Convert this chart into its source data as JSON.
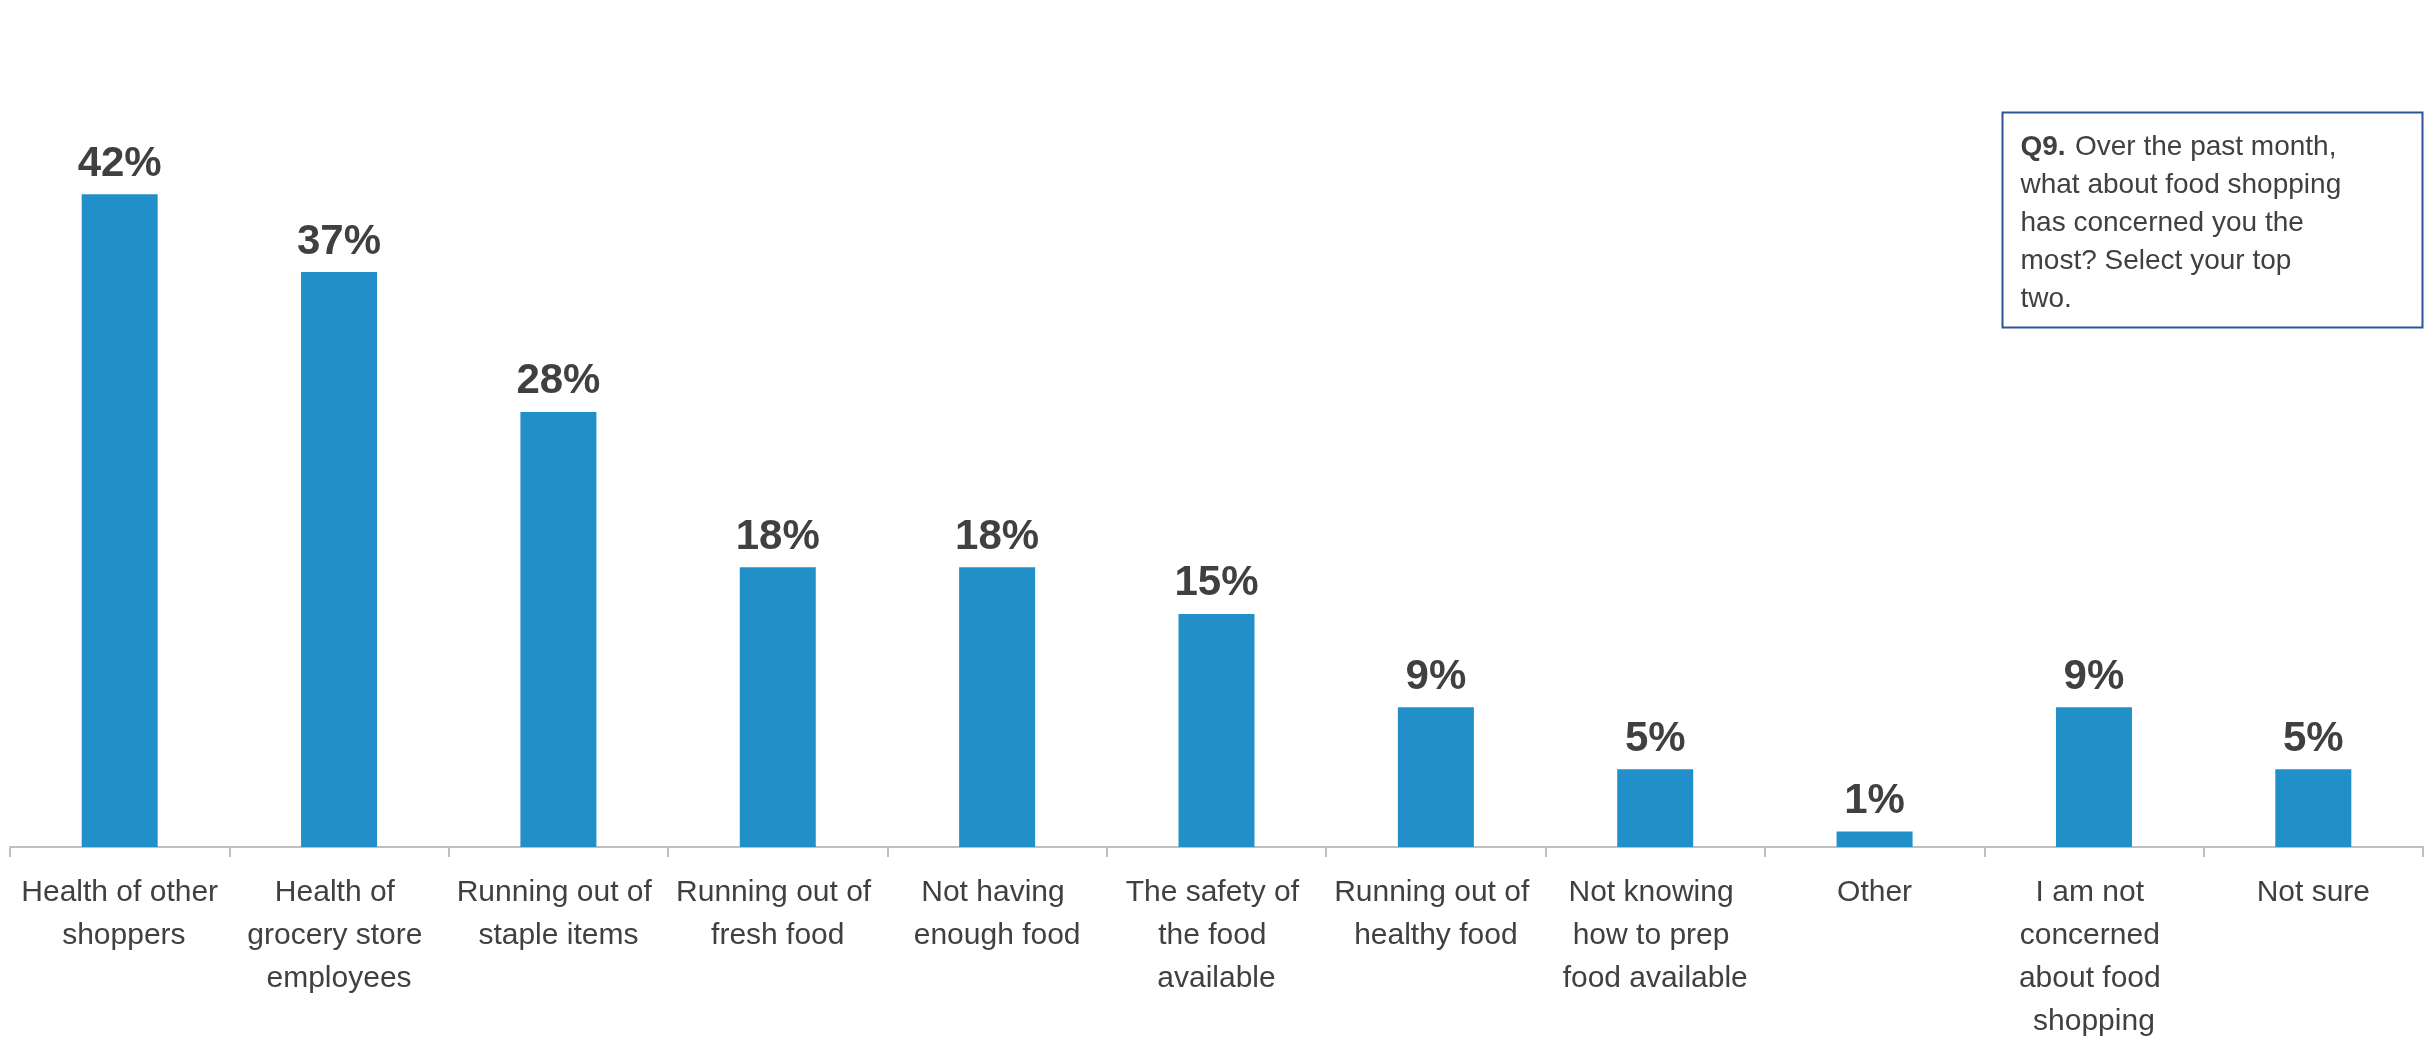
{
  "chart_data": {
    "type": "bar",
    "categories": [
      "Health of other shoppers",
      "Health of grocery store employees",
      "Running out of staple items",
      "Running out of fresh food",
      "Not having enough food",
      "The safety of the food available",
      "Running out of healthy food",
      "Not knowing how to prep food available",
      "Other",
      "I am not concerned about food shopping",
      "Not sure"
    ],
    "values": [
      42,
      37,
      28,
      18,
      18,
      15,
      9,
      5,
      1,
      9,
      5
    ],
    "value_labels": [
      "42%",
      "37%",
      "28%",
      "18%",
      "18%",
      "15%",
      "9%",
      "5%",
      "1%",
      "9%",
      "5%"
    ],
    "color": "#2290c8",
    "annotations": [
      "Q9. Over the past month, what about food shopping has concerned you the most? Select your top two."
    ]
  }
}
